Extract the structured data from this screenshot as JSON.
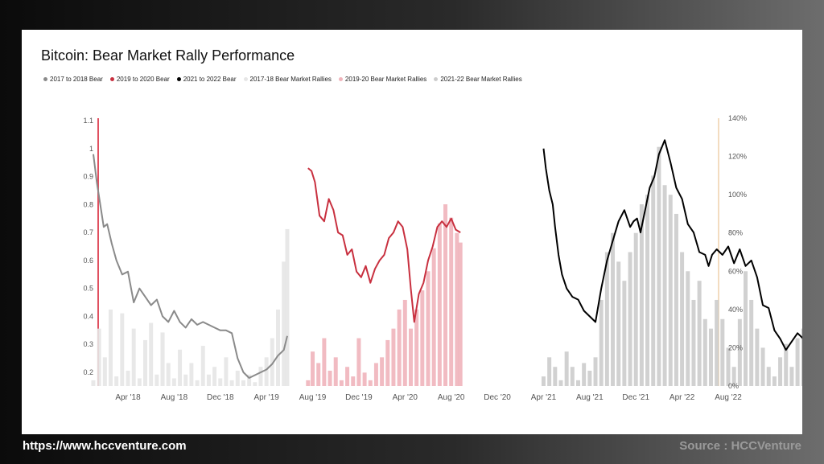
{
  "footer": {
    "url": "https://www.hccventure.com",
    "source": "Source : HCCVenture"
  },
  "chart_data": {
    "type": "line",
    "title": "Bitcoin: Bear Market Rally Performance",
    "legend_placement": "top-left",
    "x_tick_labels": [
      "Apr '18",
      "Aug '18",
      "Dec '18",
      "Apr '19",
      "Aug '19",
      "Dec '19",
      "Apr '20",
      "Aug '20",
      "Dec '20",
      "Apr '21",
      "Aug '21",
      "Dec '21",
      "Apr '22",
      "Aug '22"
    ],
    "y_left": {
      "ticks": [
        0.2,
        0.3,
        0.4,
        0.5,
        0.6,
        0.7,
        0.8,
        0.9,
        1,
        1.1
      ],
      "range": [
        0.12,
        1.1
      ]
    },
    "y_right": {
      "ticks": [
        "0%",
        "20%",
        "40%",
        "60%",
        "80%",
        "100%",
        "120%",
        "140%"
      ],
      "range": [
        0,
        140
      ]
    },
    "colors": {
      "bear_2017": "#8a8a8a",
      "bear_2019": "#c8303f",
      "bear_2021": "#000000",
      "rally_2017": "#e6e6e6",
      "rally_2019": "#f0b4bb",
      "rally_2021": "#cccccc",
      "left_axis": "#e05060",
      "right_axis": "#f3dcc0"
    },
    "series": [
      {
        "name": "2017 to 2018 Bear",
        "kind": "line",
        "color_key": "bear_2017",
        "axis": "left",
        "x": [
          0,
          0.3,
          0.6,
          0.9,
          1.2,
          1.6,
          2.0,
          2.5,
          3.0,
          3.5,
          4.0,
          4.5,
          5.0,
          5.5,
          6.0,
          6.5,
          7.0,
          7.5,
          8.0,
          8.5,
          9.0,
          9.5,
          10.0,
          10.5,
          11.0,
          11.5,
          12.0,
          12.5,
          13.0,
          13.5,
          14.0,
          14.5,
          15.0,
          15.5,
          16.0,
          16.5,
          16.8
        ],
        "y": [
          0.98,
          0.88,
          0.8,
          0.72,
          0.73,
          0.66,
          0.6,
          0.55,
          0.56,
          0.45,
          0.5,
          0.47,
          0.44,
          0.46,
          0.4,
          0.38,
          0.42,
          0.38,
          0.36,
          0.39,
          0.37,
          0.38,
          0.37,
          0.36,
          0.35,
          0.35,
          0.34,
          0.25,
          0.2,
          0.18,
          0.19,
          0.2,
          0.21,
          0.23,
          0.26,
          0.28,
          0.33
        ]
      },
      {
        "name": "2019 to 2020 Bear",
        "kind": "line",
        "color_key": "bear_2019",
        "axis": "left",
        "x": [
          18.6,
          18.9,
          19.2,
          19.6,
          20.0,
          20.4,
          20.8,
          21.2,
          21.6,
          22.0,
          22.4,
          22.8,
          23.2,
          23.6,
          24.0,
          24.4,
          24.8,
          25.2,
          25.6,
          26.0,
          26.4,
          26.8,
          27.2,
          27.5,
          27.8,
          28.2,
          28.6,
          29.0,
          29.4,
          29.8,
          30.2,
          30.6,
          31.0,
          31.4,
          31.8
        ],
        "y": [
          0.93,
          0.92,
          0.88,
          0.76,
          0.74,
          0.82,
          0.78,
          0.7,
          0.69,
          0.62,
          0.64,
          0.56,
          0.54,
          0.58,
          0.52,
          0.57,
          0.6,
          0.62,
          0.68,
          0.7,
          0.74,
          0.72,
          0.64,
          0.5,
          0.38,
          0.48,
          0.52,
          0.6,
          0.65,
          0.72,
          0.74,
          0.72,
          0.75,
          0.71,
          0.7
        ]
      },
      {
        "name": "2021 to 2022 Bear",
        "kind": "line",
        "color_key": "bear_2021",
        "axis": "left",
        "x": [
          39.0,
          39.2,
          39.5,
          39.8,
          40.0,
          40.3,
          40.6,
          41.0,
          41.5,
          42.0,
          42.5,
          43.0,
          43.5,
          44.0,
          44.5,
          45.0,
          45.5,
          46.0,
          46.5,
          46.8,
          47.1,
          47.4,
          47.8,
          48.2,
          48.6,
          49.0,
          49.5,
          50.0,
          50.5,
          51.0,
          51.5,
          52.0,
          52.5,
          53.0,
          53.3,
          53.6,
          54.0,
          54.5,
          55.0,
          55.5,
          56.0,
          56.5,
          57.0,
          57.5,
          58.0,
          58.5,
          59.0,
          59.5,
          60.0,
          60.5,
          61.0,
          61.5,
          62.0,
          62.5,
          63.0,
          63.5,
          64.0,
          64.5,
          65.0,
          65.5,
          66.0
        ],
        "y": [
          1.0,
          0.93,
          0.85,
          0.8,
          0.72,
          0.62,
          0.55,
          0.5,
          0.47,
          0.46,
          0.42,
          0.4,
          0.38,
          0.5,
          0.6,
          0.67,
          0.74,
          0.78,
          0.72,
          0.74,
          0.75,
          0.7,
          0.78,
          0.86,
          0.9,
          0.98,
          1.03,
          0.95,
          0.86,
          0.82,
          0.73,
          0.7,
          0.63,
          0.62,
          0.58,
          0.62,
          0.64,
          0.62,
          0.65,
          0.59,
          0.64,
          0.58,
          0.6,
          0.54,
          0.44,
          0.43,
          0.35,
          0.32,
          0.28,
          0.31,
          0.34,
          0.32,
          0.3,
          0.32,
          0.28,
          0.29,
          0.3,
          0.28,
          0.29,
          0.27,
          0.27
        ]
      },
      {
        "name": "2017-18 Bear Market Rallies",
        "kind": "area",
        "color_key": "rally_2017",
        "axis": "right",
        "x": [
          0,
          0.5,
          1.0,
          1.5,
          2.0,
          2.5,
          3.0,
          3.5,
          4.0,
          4.5,
          5.0,
          5.5,
          6.0,
          6.5,
          7.0,
          7.5,
          8.0,
          8.5,
          9.0,
          9.5,
          10.0,
          10.5,
          11.0,
          11.5,
          12.0,
          12.5,
          13.0,
          13.5,
          14.0,
          14.5,
          15.0,
          15.5,
          16.0,
          16.5,
          16.8
        ],
        "y": [
          3,
          30,
          15,
          40,
          5,
          38,
          8,
          30,
          4,
          24,
          33,
          6,
          28,
          12,
          4,
          19,
          6,
          12,
          3,
          21,
          6,
          10,
          4,
          15,
          3,
          8,
          3,
          6,
          2,
          10,
          15,
          25,
          40,
          65,
          82
        ]
      },
      {
        "name": "2019-20 Bear Market Rallies",
        "kind": "area",
        "color_key": "rally_2019",
        "axis": "right",
        "x": [
          18.6,
          19.0,
          19.5,
          20.0,
          20.5,
          21.0,
          21.5,
          22.0,
          22.5,
          23.0,
          23.5,
          24.0,
          24.5,
          25.0,
          25.5,
          26.0,
          26.5,
          27.0,
          27.5,
          28.0,
          28.5,
          29.0,
          29.5,
          30.0,
          30.5,
          31.0,
          31.5,
          31.8
        ],
        "y": [
          3,
          18,
          12,
          25,
          8,
          15,
          3,
          10,
          5,
          25,
          7,
          3,
          12,
          15,
          24,
          30,
          40,
          45,
          30,
          40,
          50,
          60,
          72,
          85,
          95,
          88,
          80,
          75
        ]
      },
      {
        "name": "2021-22 Bear Market Rallies",
        "kind": "area",
        "color_key": "rally_2021",
        "axis": "right",
        "x": [
          39.0,
          39.5,
          40.0,
          40.5,
          41.0,
          41.5,
          42.0,
          42.5,
          43.0,
          43.5,
          44.0,
          44.5,
          45.0,
          45.5,
          46.0,
          46.5,
          47.0,
          47.5,
          48.0,
          48.5,
          49.0,
          49.5,
          50.0,
          50.5,
          51.0,
          51.5,
          52.0,
          52.5,
          53.0,
          53.5,
          54.0,
          54.5,
          55.0,
          55.5,
          56.0,
          56.5,
          57.0,
          57.5,
          58.0,
          58.5,
          59.0,
          59.5,
          60.0,
          60.5,
          61.0,
          61.5,
          62.0,
          62.5,
          63.0,
          63.5,
          64.0,
          64.5,
          65.0,
          65.5,
          66.0
        ],
        "y": [
          5,
          15,
          10,
          3,
          18,
          10,
          3,
          12,
          8,
          15,
          45,
          70,
          80,
          65,
          55,
          70,
          80,
          95,
          100,
          110,
          125,
          105,
          100,
          90,
          70,
          60,
          45,
          55,
          35,
          30,
          45,
          35,
          20,
          10,
          35,
          60,
          45,
          30,
          20,
          10,
          5,
          15,
          22,
          10,
          25,
          30,
          15,
          5,
          8,
          12,
          10,
          8,
          12,
          10,
          8
        ]
      }
    ]
  }
}
